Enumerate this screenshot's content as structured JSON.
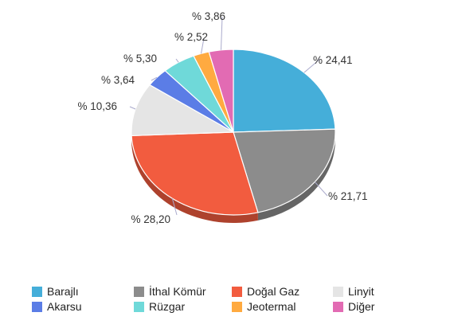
{
  "chart_data": {
    "type": "pie",
    "title": "",
    "slices": [
      {
        "name": "Barajlı",
        "label": "% 24,41",
        "value": 24.41,
        "color": "#45aed9"
      },
      {
        "name": "İthal Kömür",
        "label": "% 21,71",
        "value": 21.71,
        "color": "#8c8c8c"
      },
      {
        "name": "Doğal Gaz",
        "label": "% 28,20",
        "value": 28.2,
        "color": "#f25c3f"
      },
      {
        "name": "Linyit",
        "label": "% 10,36",
        "value": 10.36,
        "color": "#e5e5e5"
      },
      {
        "name": "Akarsu",
        "label": "% 3,64",
        "value": 3.64,
        "color": "#5b7de6"
      },
      {
        "name": "Rüzgar",
        "label": "% 5,30",
        "value": 5.3,
        "color": "#6fd9d9"
      },
      {
        "name": "Jeotermal",
        "label": "% 2,52",
        "value": 2.52,
        "color": "#ffaa40"
      },
      {
        "name": "Diğer",
        "label": "% 3,86",
        "value": 3.86,
        "color": "#e26bb3"
      }
    ],
    "legend_position": "bottom"
  }
}
